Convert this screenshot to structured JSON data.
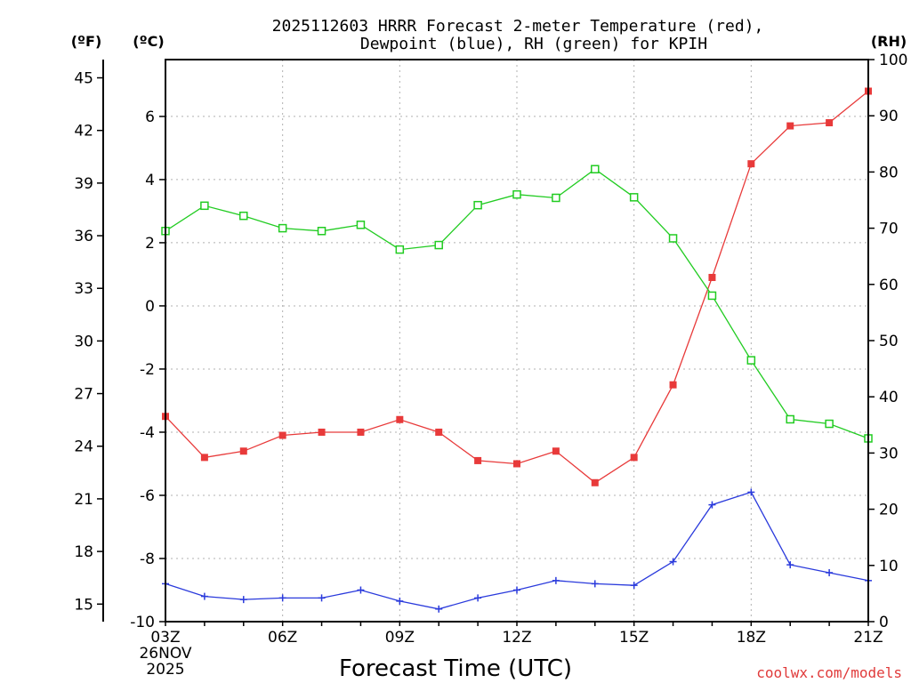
{
  "chart_data": {
    "type": "line",
    "title_line1": "2025112603 HRRR Forecast 2-meter Temperature (red),",
    "title_line2": "Dewpoint (blue), RH (green) for KPIH",
    "xlabel": "Forecast Time (UTC)",
    "unit_f": "(ºF)",
    "unit_c": "(ºC)",
    "unit_rh": "(RH)",
    "credit": "coolwx.com/models",
    "date_label": [
      "26NOV",
      "2025"
    ],
    "x_hours": [
      3,
      4,
      5,
      6,
      7,
      8,
      9,
      10,
      11,
      12,
      13,
      14,
      15,
      16,
      17,
      18,
      19,
      20,
      21
    ],
    "x_ticks": [
      {
        "hour": 3,
        "label": "03Z"
      },
      {
        "hour": 6,
        "label": "06Z"
      },
      {
        "hour": 9,
        "label": "09Z"
      },
      {
        "hour": 12,
        "label": "12Z"
      },
      {
        "hour": 15,
        "label": "15Z"
      },
      {
        "hour": 18,
        "label": "18Z"
      },
      {
        "hour": 21,
        "label": "21Z"
      }
    ],
    "ylim_c": [
      -10,
      7.8
    ],
    "y_ticks_c": [
      "-10",
      "-8",
      "-6",
      "-4",
      "-2",
      "0",
      "2",
      "4",
      "6"
    ],
    "y_ticks_f": [
      "15",
      "18",
      "21",
      "24",
      "27",
      "30",
      "33",
      "36",
      "39",
      "42",
      "45"
    ],
    "ylim_rh": [
      0,
      100
    ],
    "y_ticks_rh": [
      "0",
      "10",
      "20",
      "30",
      "40",
      "50",
      "60",
      "70",
      "80",
      "90",
      "100"
    ],
    "series": [
      {
        "color": "#e83a3a",
        "axis": "c",
        "marker": "filled-square",
        "values": [
          -3.5,
          -4.8,
          -4.6,
          -4.1,
          -4.0,
          -4.0,
          -3.6,
          -4.0,
          -4.9,
          -5.0,
          -4.6,
          -5.6,
          -4.8,
          -2.5,
          0.9,
          4.5,
          5.7,
          5.8,
          6.8
        ]
      },
      {
        "color": "#2a3adc",
        "axis": "c",
        "marker": "plus",
        "values": [
          -8.8,
          -9.2,
          -9.3,
          -9.25,
          -9.25,
          -9.0,
          -9.35,
          -9.6,
          -9.25,
          -9.0,
          -8.7,
          -8.8,
          -8.85,
          -8.1,
          -6.3,
          -5.9,
          -8.2,
          -8.45,
          -8.7
        ]
      },
      {
        "color": "#22cc22",
        "axis": "rh",
        "marker": "open-square",
        "values": [
          69.5,
          74.0,
          72.2,
          70.0,
          69.5,
          70.6,
          66.2,
          67.0,
          74.1,
          76.0,
          75.4,
          80.5,
          75.5,
          68.2,
          58.0,
          46.5,
          36.0,
          35.2,
          32.6
        ]
      }
    ]
  }
}
